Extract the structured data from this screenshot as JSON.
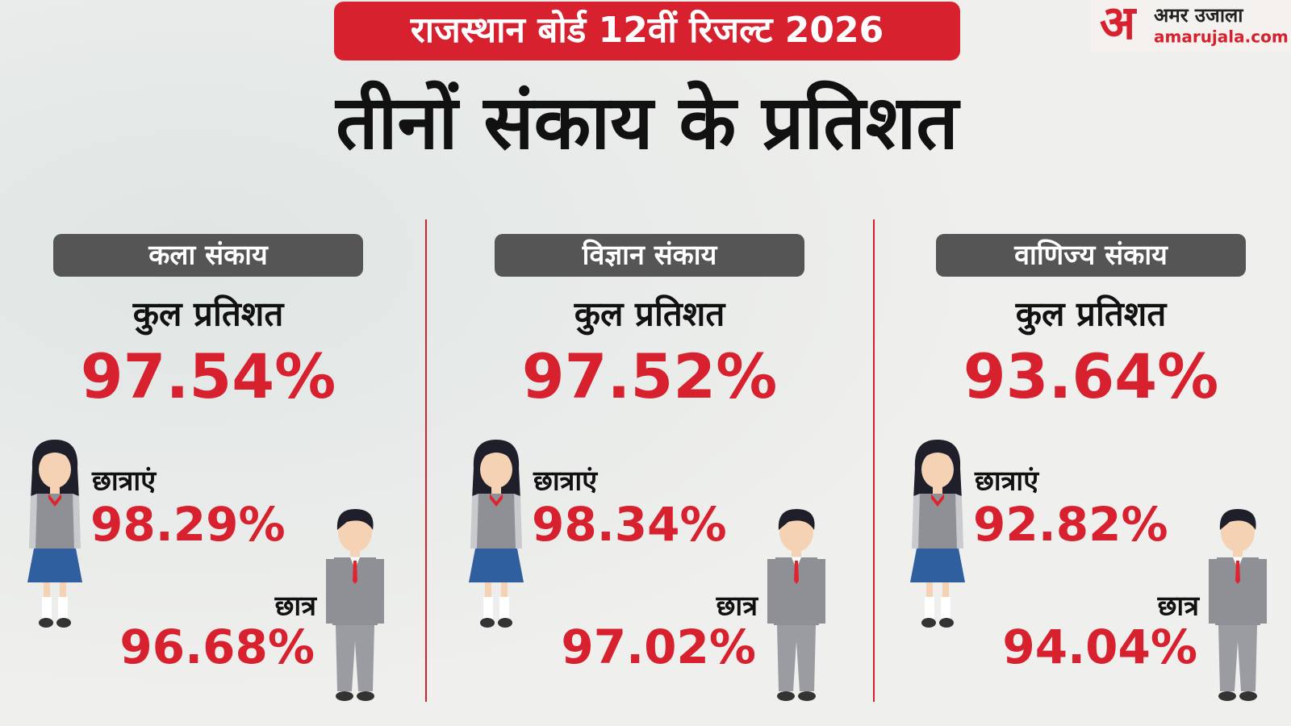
{
  "header": {
    "banner": "राजस्थान बोर्ड 12वीं रिजल्ट 2026",
    "title": "तीनों संकाय के प्रतिशत"
  },
  "logo": {
    "mark": "अ",
    "name": "अमर उजाला",
    "site": "amarujala.com"
  },
  "columns": [
    {
      "name": "कला संकाय",
      "total_label": "कुल प्रतिशत",
      "total": "97.54%",
      "girls_label": "छात्राएं",
      "girls": "98.29%",
      "boys_label": "छात्र",
      "boys": "96.68%"
    },
    {
      "name": "विज्ञान संकाय",
      "total_label": "कुल प्रतिशत",
      "total": "97.52%",
      "girls_label": "छात्राएं",
      "girls": "98.34%",
      "boys_label": "छात्र",
      "boys": "97.02%"
    },
    {
      "name": "वाणिज्य संकाय",
      "total_label": "कुल प्रतिशत",
      "total": "93.64%",
      "girls_label": "छात्राएं",
      "girls": "92.82%",
      "boys_label": "छात्र",
      "boys": "94.04%"
    }
  ]
}
